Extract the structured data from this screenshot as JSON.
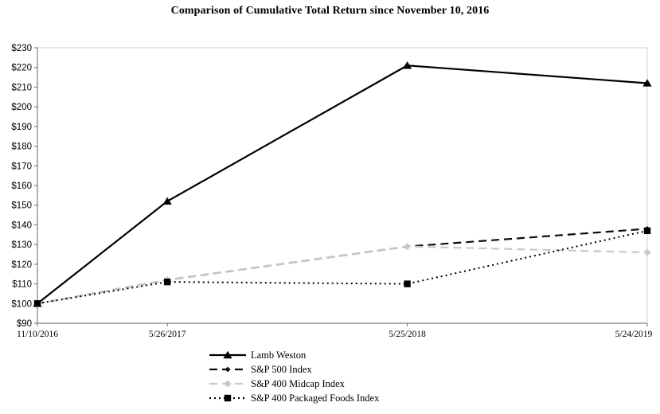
{
  "title": "Comparison of Cumulative Total Return since November 10, 2016",
  "chart_data": {
    "type": "line",
    "title": "Comparison of Cumulative Total Return since November 10, 2016",
    "x_categories": [
      "11/10/2016",
      "5/26/2017",
      "5/25/2018",
      "5/24/2019"
    ],
    "x_time_scaled": true,
    "y_axis": {
      "min": 90,
      "max": 230,
      "step": 10,
      "tick_prefix": "$"
    },
    "grid": "off",
    "legend_position": "bottom-left",
    "plot_border_color": "#d9d9d9",
    "axis_color": "#808080",
    "series": [
      {
        "name": "Lamb Weston",
        "values": [
          100,
          152,
          221,
          212
        ],
        "color": "#000000",
        "line_style": "solid",
        "marker": "triangle"
      },
      {
        "name": "S&P 500 Index",
        "values": [
          100,
          112,
          129,
          138
        ],
        "color": "#0d0d0d",
        "line_style": "dashed",
        "marker": "diamond-small"
      },
      {
        "name": "S&P 400 Midcap Index",
        "values": [
          100,
          112,
          129,
          126
        ],
        "color": "#c9c9c9",
        "line_style": "dashed",
        "marker": "diamond"
      },
      {
        "name": "S&P 400 Packaged Foods Index",
        "values": [
          100,
          111,
          110,
          137
        ],
        "color": "#000000",
        "line_style": "dotted",
        "marker": "square"
      }
    ]
  }
}
